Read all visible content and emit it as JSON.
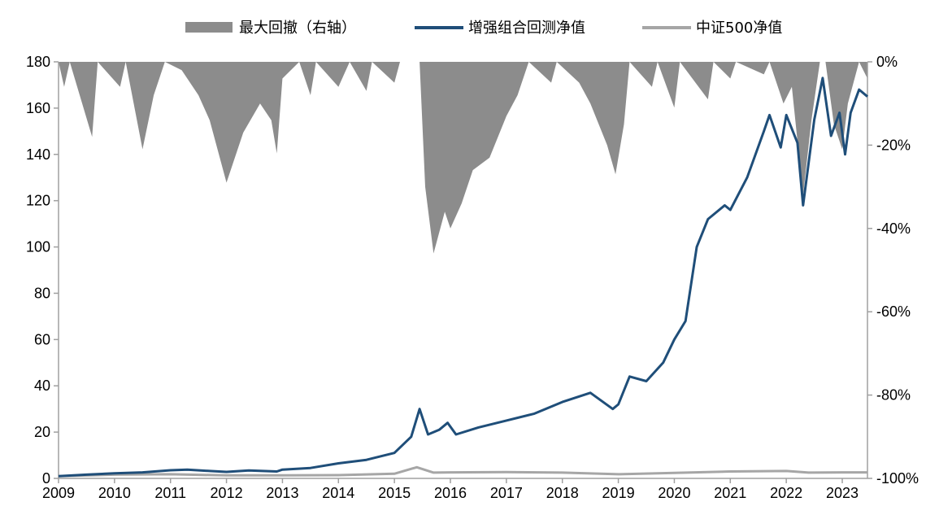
{
  "chart_data": {
    "type": "line",
    "legend": {
      "placement": "top",
      "items": [
        {
          "label": "最大回撤（右轴）",
          "kind": "area",
          "color": "#8c8c8c"
        },
        {
          "label": "增强组合回测净值",
          "kind": "line",
          "color": "#1f4e79"
        },
        {
          "label": "中证500净值",
          "kind": "line",
          "color": "#a6a6a6"
        }
      ]
    },
    "x_ticks": [
      "2009",
      "2010",
      "2011",
      "2012",
      "2013",
      "2014",
      "2015",
      "2016",
      "2017",
      "2018",
      "2019",
      "2020",
      "2021",
      "2022",
      "2023"
    ],
    "xlim": [
      2009.0,
      2023.45
    ],
    "y_left": {
      "ticks": [
        "0",
        "20",
        "40",
        "60",
        "80",
        "100",
        "120",
        "140",
        "160",
        "180"
      ],
      "lim": [
        0,
        180
      ]
    },
    "y_right": {
      "ticks": [
        "0%",
        "-20%",
        "-40%",
        "-60%",
        "-80%",
        "-100%"
      ],
      "lim": [
        -1.0,
        0.0
      ]
    },
    "grid": false,
    "series": [
      {
        "name": "增强组合回测净值",
        "axis": "left",
        "color": "#1f4e79",
        "points": [
          [
            2009.0,
            1.0
          ],
          [
            2009.5,
            1.6
          ],
          [
            2010.0,
            2.2
          ],
          [
            2010.5,
            2.6
          ],
          [
            2011.0,
            3.5
          ],
          [
            2011.3,
            3.8
          ],
          [
            2011.7,
            3.2
          ],
          [
            2012.0,
            2.8
          ],
          [
            2012.4,
            3.4
          ],
          [
            2012.9,
            3.0
          ],
          [
            2013.0,
            3.8
          ],
          [
            2013.5,
            4.5
          ],
          [
            2014.0,
            6.5
          ],
          [
            2014.5,
            8.0
          ],
          [
            2015.0,
            11.0
          ],
          [
            2015.3,
            18.0
          ],
          [
            2015.45,
            30.0
          ],
          [
            2015.6,
            19.0
          ],
          [
            2015.8,
            21.0
          ],
          [
            2015.95,
            24.0
          ],
          [
            2016.1,
            19.0
          ],
          [
            2016.5,
            22.0
          ],
          [
            2017.0,
            25.0
          ],
          [
            2017.5,
            28.0
          ],
          [
            2018.0,
            33.0
          ],
          [
            2018.5,
            37.0
          ],
          [
            2018.9,
            30.0
          ],
          [
            2019.0,
            32.0
          ],
          [
            2019.2,
            44.0
          ],
          [
            2019.5,
            42.0
          ],
          [
            2019.8,
            50.0
          ],
          [
            2020.0,
            60.0
          ],
          [
            2020.2,
            68.0
          ],
          [
            2020.4,
            100.0
          ],
          [
            2020.6,
            112.0
          ],
          [
            2020.9,
            118.0
          ],
          [
            2021.0,
            116.0
          ],
          [
            2021.3,
            130.0
          ],
          [
            2021.6,
            150.0
          ],
          [
            2021.7,
            157.0
          ],
          [
            2021.9,
            143.0
          ],
          [
            2022.0,
            157.0
          ],
          [
            2022.2,
            145.0
          ],
          [
            2022.3,
            118.0
          ],
          [
            2022.5,
            155.0
          ],
          [
            2022.65,
            173.0
          ],
          [
            2022.8,
            148.0
          ],
          [
            2022.95,
            158.0
          ],
          [
            2023.05,
            140.0
          ],
          [
            2023.15,
            158.0
          ],
          [
            2023.3,
            168.0
          ],
          [
            2023.45,
            165.0
          ]
        ]
      },
      {
        "name": "中证500净值",
        "axis": "left",
        "color": "#a6a6a6",
        "points": [
          [
            2009.0,
            1.0
          ],
          [
            2010.0,
            1.6
          ],
          [
            2011.0,
            1.8
          ],
          [
            2012.0,
            1.3
          ],
          [
            2013.0,
            1.3
          ],
          [
            2014.0,
            1.4
          ],
          [
            2015.0,
            2.0
          ],
          [
            2015.4,
            4.8
          ],
          [
            2015.7,
            2.5
          ],
          [
            2016.0,
            2.6
          ],
          [
            2017.0,
            2.7
          ],
          [
            2018.0,
            2.5
          ],
          [
            2019.0,
            1.8
          ],
          [
            2020.0,
            2.4
          ],
          [
            2021.0,
            3.0
          ],
          [
            2022.0,
            3.2
          ],
          [
            2022.4,
            2.5
          ],
          [
            2023.0,
            2.6
          ],
          [
            2023.45,
            2.6
          ]
        ]
      },
      {
        "name": "最大回撤（右轴）",
        "axis": "right",
        "type": "area",
        "color": "#8c8c8c",
        "points": [
          [
            2009.0,
            0.0
          ],
          [
            2009.1,
            -0.06
          ],
          [
            2009.2,
            0.0
          ],
          [
            2009.6,
            -0.18
          ],
          [
            2009.7,
            0.0
          ],
          [
            2010.1,
            -0.06
          ],
          [
            2010.2,
            0.0
          ],
          [
            2010.5,
            -0.21
          ],
          [
            2010.7,
            -0.08
          ],
          [
            2010.9,
            0.0
          ],
          [
            2011.2,
            -0.02
          ],
          [
            2011.5,
            -0.08
          ],
          [
            2011.7,
            -0.14
          ],
          [
            2011.9,
            -0.24
          ],
          [
            2012.0,
            -0.29
          ],
          [
            2012.3,
            -0.17
          ],
          [
            2012.6,
            -0.1
          ],
          [
            2012.8,
            -0.14
          ],
          [
            2012.9,
            -0.22
          ],
          [
            2013.0,
            -0.04
          ],
          [
            2013.3,
            0.0
          ],
          [
            2013.5,
            -0.08
          ],
          [
            2013.6,
            0.0
          ],
          [
            2014.0,
            -0.06
          ],
          [
            2014.2,
            0.0
          ],
          [
            2014.5,
            -0.07
          ],
          [
            2014.6,
            0.0
          ],
          [
            2015.0,
            -0.05
          ],
          [
            2015.1,
            0.0
          ],
          [
            2015.45,
            0.0
          ],
          [
            2015.55,
            -0.3
          ],
          [
            2015.7,
            -0.46
          ],
          [
            2015.9,
            -0.36
          ],
          [
            2016.0,
            -0.4
          ],
          [
            2016.2,
            -0.34
          ],
          [
            2016.4,
            -0.26
          ],
          [
            2016.7,
            -0.23
          ],
          [
            2017.0,
            -0.13
          ],
          [
            2017.2,
            -0.08
          ],
          [
            2017.4,
            0.0
          ],
          [
            2017.8,
            -0.05
          ],
          [
            2017.9,
            0.0
          ],
          [
            2018.3,
            -0.05
          ],
          [
            2018.5,
            -0.1
          ],
          [
            2018.8,
            -0.2
          ],
          [
            2018.95,
            -0.27
          ],
          [
            2019.1,
            -0.15
          ],
          [
            2019.2,
            0.0
          ],
          [
            2019.6,
            -0.06
          ],
          [
            2019.7,
            0.0
          ],
          [
            2020.0,
            -0.11
          ],
          [
            2020.1,
            0.0
          ],
          [
            2020.6,
            -0.09
          ],
          [
            2020.7,
            0.0
          ],
          [
            2021.0,
            -0.04
          ],
          [
            2021.1,
            0.0
          ],
          [
            2021.6,
            -0.03
          ],
          [
            2021.7,
            0.0
          ],
          [
            2021.95,
            -0.1
          ],
          [
            2022.1,
            -0.06
          ],
          [
            2022.3,
            -0.32
          ],
          [
            2022.45,
            -0.14
          ],
          [
            2022.6,
            0.0
          ],
          [
            2022.7,
            0.0
          ],
          [
            2022.85,
            -0.15
          ],
          [
            2023.0,
            -0.21
          ],
          [
            2023.1,
            -0.1
          ],
          [
            2023.3,
            0.0
          ],
          [
            2023.45,
            -0.04
          ]
        ]
      }
    ]
  },
  "colors": {
    "axis": "#a0a0a0",
    "text": "#000000"
  }
}
